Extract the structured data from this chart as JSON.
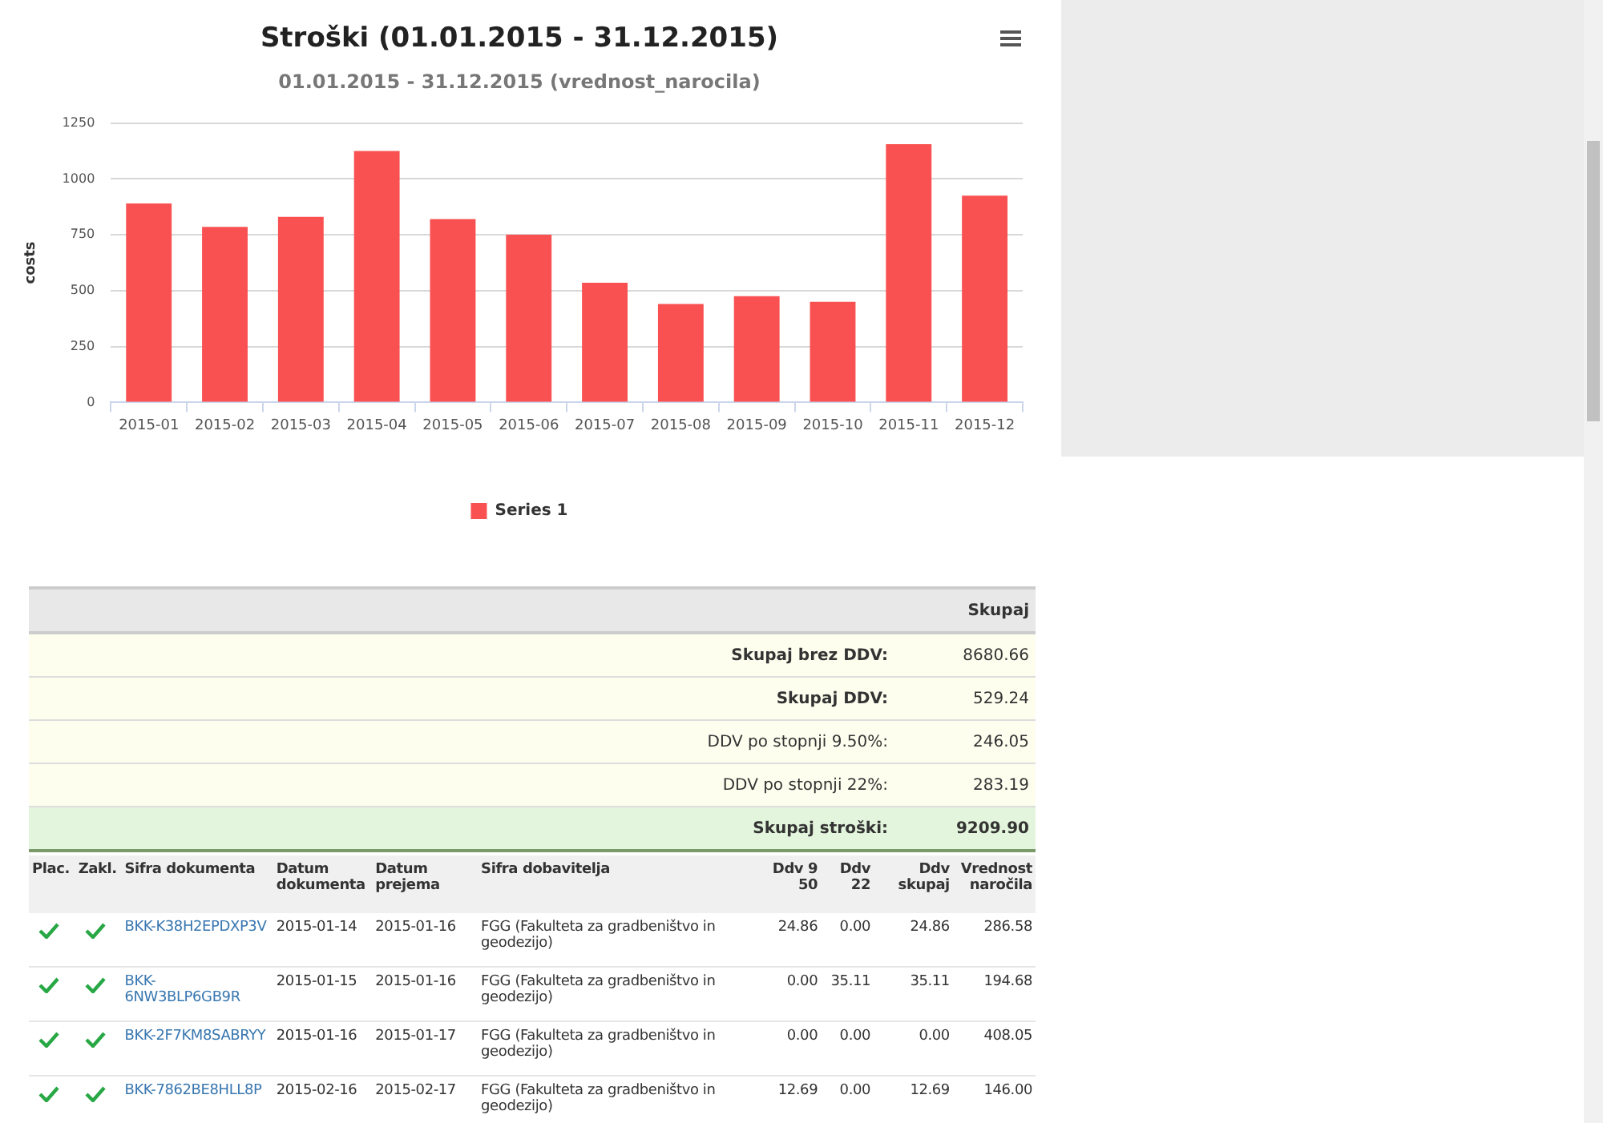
{
  "chart_data": [
    {
      "type": "bar",
      "title": "Stroški (01.01.2015 - 31.12.2015)",
      "subtitle": "01.01.2015 - 31.12.2015 (vrednost_narocila)",
      "ylabel": "costs",
      "categories": [
        "2015-01",
        "2015-02",
        "2015-03",
        "2015-04",
        "2015-05",
        "2015-06",
        "2015-07",
        "2015-08",
        "2015-09",
        "2015-10",
        "2015-11",
        "2015-12"
      ],
      "series": [
        {
          "name": "Series 1",
          "color": "#f95151",
          "values": [
            890,
            785,
            830,
            1125,
            820,
            750,
            535,
            440,
            475,
            450,
            1155,
            925
          ]
        }
      ],
      "ylim": [
        0,
        1250
      ],
      "yticks": [
        0,
        250,
        500,
        750,
        1000,
        1250
      ],
      "grid": "y",
      "legend": "bottom"
    },
    {
      "type": "other",
      "title": "Skupaj",
      "annotations": [
        "Skupaj brez DDV:",
        "8680.66",
        "Skupaj DDV:",
        "529.24",
        "DDV po stopnji 9.50%:",
        "246.05",
        "DDV po stopnji 22%:",
        "283.19",
        "Skupaj stroški:",
        "9209.90"
      ]
    },
    {
      "type": "other",
      "categories": [
        "Plac.",
        "Zakl.",
        "Sifra dokumenta",
        "Datum dokumenta",
        "Datum prejema",
        "Sifra dobavitelja",
        "Ddv 9 50",
        "Ddv 22",
        "Ddv skupaj",
        "Vrednost naročila"
      ],
      "annotations": [
        "BKK-K38H2EPDXP3V",
        "2015-01-14",
        "2015-01-16",
        "FGG (Fakulteta za gradbeništvo in geodezijo)",
        "24.86",
        "0.00",
        "24.86",
        "286.58",
        "BKK-6NW3BLP6GB9R",
        "2015-01-15",
        "2015-01-16",
        "FGG (Fakulteta za gradbeništvo in geodezijo)",
        "0.00",
        "35.11",
        "35.11",
        "194.68",
        "BKK-2F7KM8SABRYY",
        "2015-01-16",
        "2015-01-17",
        "FGG (Fakulteta za gradbeništvo in geodezijo)",
        "0.00",
        "0.00",
        "0.00",
        "408.05",
        "BKK-7862BE8HLL8P",
        "2015-02-16",
        "2015-02-17",
        "FGG (Fakulteta za gradbeništvo in geodezijo)",
        "12.69",
        "0.00",
        "12.69",
        "146.00"
      ]
    }
  ]
}
